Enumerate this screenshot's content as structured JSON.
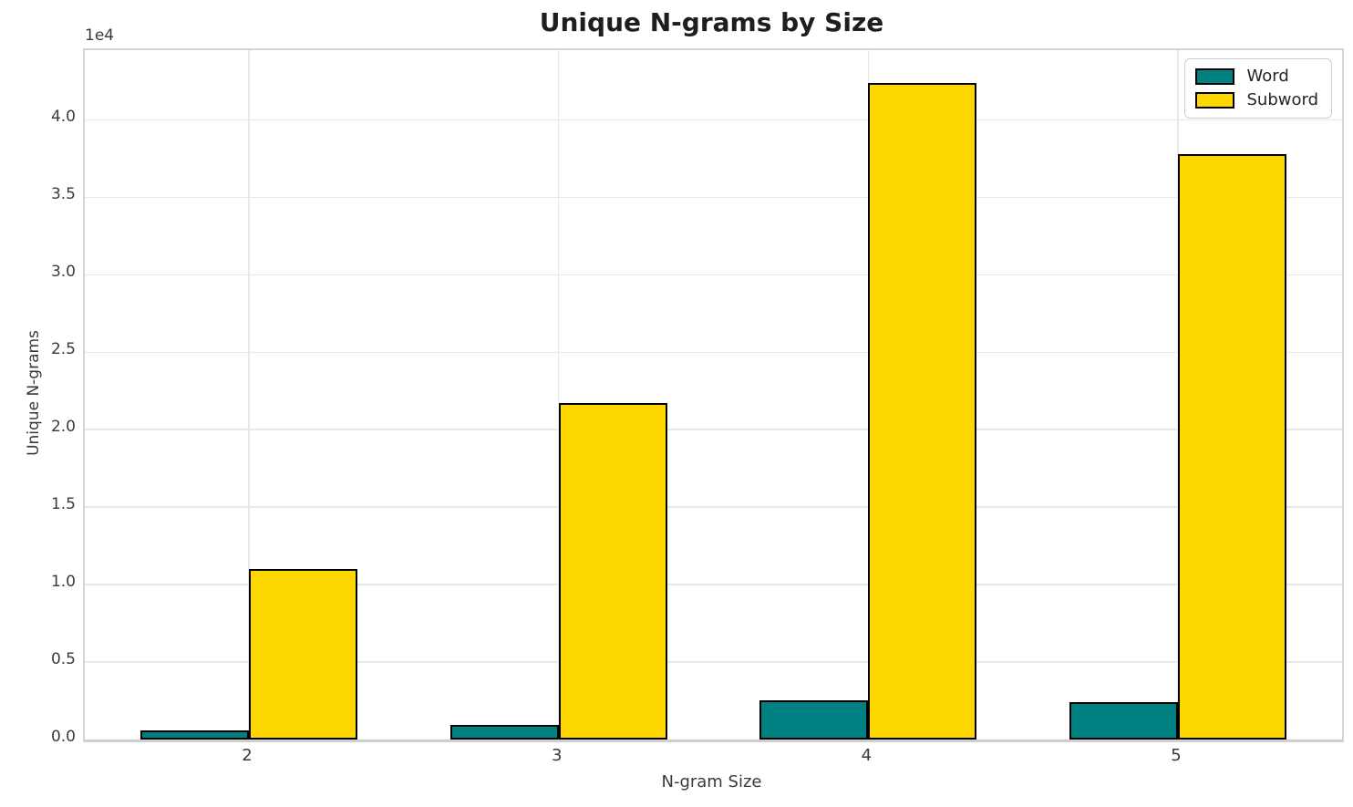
{
  "chart_data": {
    "type": "bar",
    "title": "Unique N-grams by Size",
    "xlabel": "N-gram Size",
    "ylabel": "Unique N-grams",
    "y_offset_label": "1e4",
    "categories": [
      "2",
      "3",
      "4",
      "5"
    ],
    "x_values": [
      2,
      3,
      4,
      5
    ],
    "series": [
      {
        "name": "Word",
        "color": "#008080",
        "values": [
          600,
          950,
          2550,
          2400
        ]
      },
      {
        "name": "Subword",
        "color": "#FFD700",
        "values": [
          11000,
          21700,
          42400,
          37800
        ]
      }
    ],
    "bar_width": 0.35,
    "bar_edge_color": "#000000",
    "xlim": [
      1.47,
      5.53
    ],
    "ylim": [
      0,
      44500
    ],
    "yticks": [
      0,
      5000,
      10000,
      15000,
      20000,
      25000,
      30000,
      35000,
      40000
    ],
    "ytick_labels": [
      "0.0",
      "0.5",
      "1.0",
      "1.5",
      "2.0",
      "2.5",
      "3.0",
      "3.5",
      "4.0"
    ],
    "grid": true,
    "legend_position": "upper right",
    "colors": {
      "grid": "#e8e8e8",
      "spine": "#d4d4d4",
      "tick_text": "#3a3a3a",
      "title_text": "#1e1e1e",
      "background": "#ffffff"
    }
  }
}
